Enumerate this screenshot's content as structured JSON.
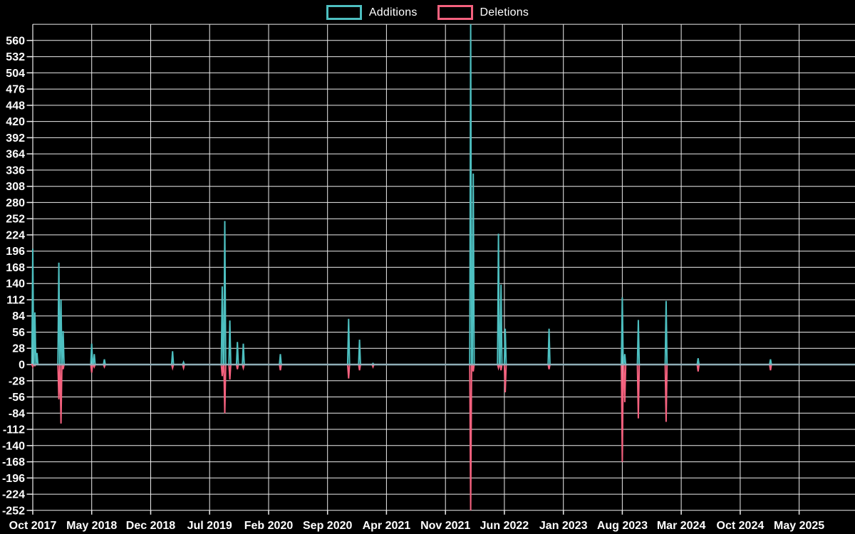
{
  "legend": {
    "additions": "Additions",
    "deletions": "Deletions"
  },
  "colors": {
    "additions": "#4DBFC0",
    "deletions": "#F4617E",
    "zero_line": "#8FAEB8",
    "grid": "#EDEDED",
    "background": "#000000",
    "text": "#FFFFFF"
  },
  "chart_data": {
    "type": "line",
    "title": "",
    "subtitle": "",
    "legend_entries": [
      "Additions",
      "Deletions"
    ],
    "legend_position": "top-center",
    "grid": true,
    "ylim": [
      -252,
      588
    ],
    "y_ticks": [
      560,
      532,
      504,
      476,
      448,
      420,
      392,
      364,
      336,
      308,
      280,
      252,
      224,
      196,
      168,
      140,
      112,
      84,
      56,
      28,
      0,
      -28,
      -56,
      -84,
      -112,
      -140,
      -168,
      -196,
      -224,
      -252
    ],
    "y_tick_step": 28,
    "x_tick_labels": [
      "Oct 2017",
      "May 2018",
      "Dec 2018",
      "Jul 2019",
      "Feb 2020",
      "Sep 2020",
      "Apr 2021",
      "Nov 2021",
      "Jun 2022",
      "Jan 2023",
      "Aug 2023",
      "Mar 2024",
      "Oct 2024",
      "May 2025"
    ],
    "x_tick_interval_months": 7,
    "x_unit": "m = months after Oct 2017 (weekly data, zero between spikes)",
    "series": [
      {
        "name": "Additions",
        "color": "#4DBFC0",
        "points": [
          {
            "date": "Oct 2017",
            "m": 0.0,
            "v": 200
          },
          {
            "date": "Oct 2017",
            "m": 0.25,
            "v": 90
          },
          {
            "date": "Oct 2017",
            "m": 0.5,
            "v": 20
          },
          {
            "date": "Jan 2018",
            "m": 3.1,
            "v": 176
          },
          {
            "date": "Jan 2018",
            "m": 3.35,
            "v": 112
          },
          {
            "date": "Jan 2018",
            "m": 3.6,
            "v": 58
          },
          {
            "date": "May 2018",
            "m": 7.0,
            "v": 36
          },
          {
            "date": "May 2018",
            "m": 7.3,
            "v": 18
          },
          {
            "date": "Jun 2018",
            "m": 8.5,
            "v": 9
          },
          {
            "date": "Feb 2019",
            "m": 16.6,
            "v": 23
          },
          {
            "date": "Mar 2019",
            "m": 17.9,
            "v": 4
          },
          {
            "date": "Aug 2019",
            "m": 22.5,
            "v": 135
          },
          {
            "date": "Aug 2019",
            "m": 22.8,
            "v": 248
          },
          {
            "date": "Sep 2019",
            "m": 23.4,
            "v": 76
          },
          {
            "date": "Oct 2019",
            "m": 24.3,
            "v": 39
          },
          {
            "date": "Nov 2019",
            "m": 25.0,
            "v": 36
          },
          {
            "date": "Mar 2020",
            "m": 29.4,
            "v": 18
          },
          {
            "date": "Nov 2020",
            "m": 37.5,
            "v": 79
          },
          {
            "date": "Dec 2020",
            "m": 38.8,
            "v": 43
          },
          {
            "date": "Feb 2021",
            "m": 40.4,
            "v": 2
          },
          {
            "date": "Feb 2022",
            "m": 52.0,
            "v": 588
          },
          {
            "date": "Feb 2022",
            "m": 52.3,
            "v": 330
          },
          {
            "date": "May 2022",
            "m": 55.3,
            "v": 226
          },
          {
            "date": "May 2022",
            "m": 55.6,
            "v": 138
          },
          {
            "date": "Jun 2022",
            "m": 56.1,
            "v": 62
          },
          {
            "date": "Nov 2022",
            "m": 61.3,
            "v": 62
          },
          {
            "date": "Aug 2023",
            "m": 70.0,
            "v": 116
          },
          {
            "date": "Aug 2023",
            "m": 70.3,
            "v": 18
          },
          {
            "date": "Oct 2023",
            "m": 71.9,
            "v": 77
          },
          {
            "date": "Jan 2024",
            "m": 75.2,
            "v": 110
          },
          {
            "date": "May 2024",
            "m": 79.0,
            "v": 11
          },
          {
            "date": "Jan 2025",
            "m": 87.6,
            "v": 9
          }
        ]
      },
      {
        "name": "Deletions",
        "color": "#F4617E",
        "points": [
          {
            "date": "Oct 2017",
            "m": 0.0,
            "v": -4
          },
          {
            "date": "Oct 2017",
            "m": 0.25,
            "v": -2
          },
          {
            "date": "Jan 2018",
            "m": 3.1,
            "v": -60
          },
          {
            "date": "Jan 2018",
            "m": 3.35,
            "v": -102
          },
          {
            "date": "Jan 2018",
            "m": 3.6,
            "v": -8
          },
          {
            "date": "May 2018",
            "m": 7.0,
            "v": -14
          },
          {
            "date": "May 2018",
            "m": 7.3,
            "v": -4
          },
          {
            "date": "Jun 2018",
            "m": 8.5,
            "v": -4
          },
          {
            "date": "Feb 2019",
            "m": 16.6,
            "v": -6
          },
          {
            "date": "Mar 2019",
            "m": 17.9,
            "v": -6
          },
          {
            "date": "Aug 2019",
            "m": 22.5,
            "v": -20
          },
          {
            "date": "Aug 2019",
            "m": 22.8,
            "v": -84
          },
          {
            "date": "Sep 2019",
            "m": 23.4,
            "v": -26
          },
          {
            "date": "Oct 2019",
            "m": 24.3,
            "v": -8
          },
          {
            "date": "Nov 2019",
            "m": 25.0,
            "v": -6
          },
          {
            "date": "Mar 2020",
            "m": 29.4,
            "v": -10
          },
          {
            "date": "Nov 2020",
            "m": 37.5,
            "v": -24
          },
          {
            "date": "Dec 2020",
            "m": 38.8,
            "v": -10
          },
          {
            "date": "Feb 2021",
            "m": 40.4,
            "v": -4
          },
          {
            "date": "Feb 2022",
            "m": 52.0,
            "v": -252
          },
          {
            "date": "Feb 2022",
            "m": 52.3,
            "v": -12
          },
          {
            "date": "May 2022",
            "m": 55.3,
            "v": -6
          },
          {
            "date": "May 2022",
            "m": 55.6,
            "v": -10
          },
          {
            "date": "Jun 2022",
            "m": 56.1,
            "v": -48
          },
          {
            "date": "Nov 2022",
            "m": 61.3,
            "v": -8
          },
          {
            "date": "Aug 2023",
            "m": 70.0,
            "v": -168
          },
          {
            "date": "Aug 2023",
            "m": 70.3,
            "v": -65
          },
          {
            "date": "Oct 2023",
            "m": 71.9,
            "v": -93
          },
          {
            "date": "Jan 2024",
            "m": 75.2,
            "v": -99
          },
          {
            "date": "May 2024",
            "m": 79.0,
            "v": -12
          },
          {
            "date": "Jan 2025",
            "m": 87.6,
            "v": -10
          }
        ]
      }
    ]
  }
}
